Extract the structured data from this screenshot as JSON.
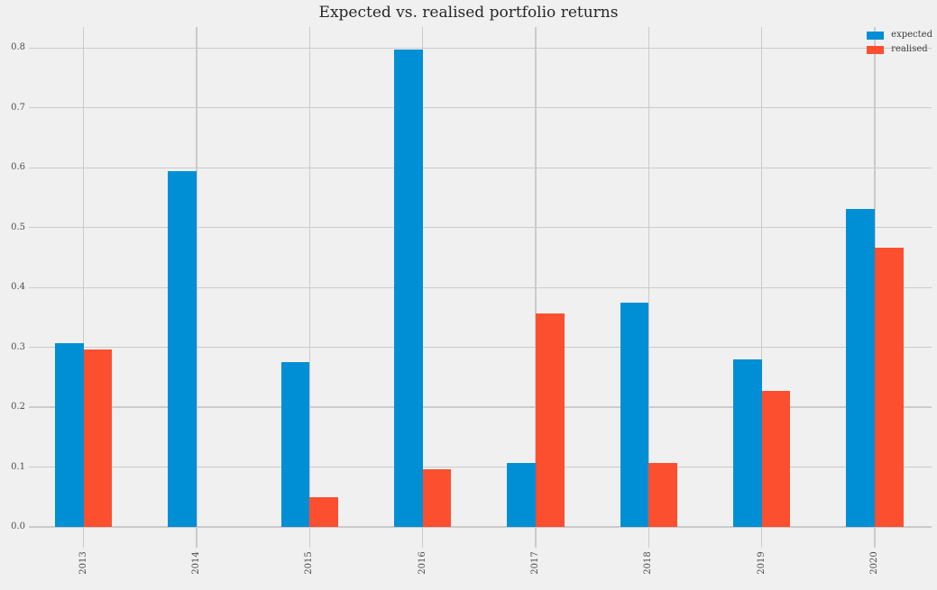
{
  "chart_data": {
    "type": "bar",
    "title": "Expected vs. realised portfolio returns",
    "categories": [
      "2013",
      "2014",
      "2015",
      "2016",
      "2017",
      "2018",
      "2019",
      "2020"
    ],
    "series": [
      {
        "name": "expected",
        "color": "#008fd5",
        "values": [
          0.307,
          0.595,
          0.276,
          0.797,
          0.107,
          0.375,
          0.28,
          0.531
        ]
      },
      {
        "name": "realised",
        "color": "#fc4f30",
        "values": [
          0.297,
          0.0,
          0.05,
          0.097,
          0.357,
          0.107,
          0.227,
          0.466
        ]
      }
    ],
    "xlabel": "",
    "ylabel": "",
    "ylim": [
      0,
      0.835
    ],
    "yticks": [
      0.0,
      0.1,
      0.2,
      0.3,
      0.4,
      0.5,
      0.6,
      0.7,
      0.8
    ],
    "ytick_labels": [
      "0.0",
      "0.1",
      "0.2",
      "0.3",
      "0.4",
      "0.5",
      "0.6",
      "0.7",
      "0.8"
    ],
    "legend": {
      "position": "upper right",
      "entries": [
        "expected",
        "realised"
      ]
    },
    "grid": true,
    "colors": {
      "background": "#f0f0f0",
      "gridline": "#cbcbcb",
      "title_text": "#262626",
      "tick_text": "#4d4d4d"
    }
  }
}
